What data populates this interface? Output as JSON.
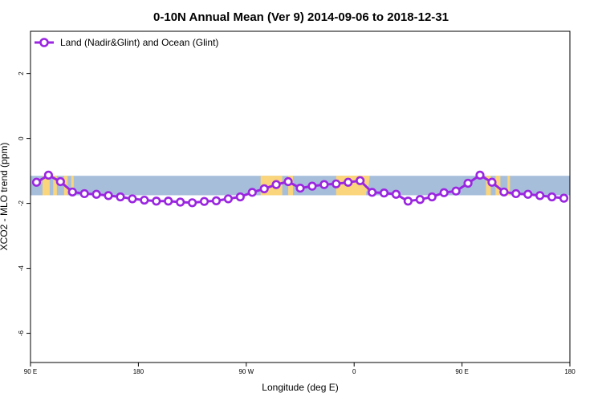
{
  "chart_data": {
    "type": "line",
    "title": "0-10N Annual Mean (Ver 9)   2014-09-06 to 2018-12-31",
    "xlabel": "Longitude (deg E)",
    "ylabel": "XCO2 - MLO trend (ppm)",
    "xlim": [
      90,
      540
    ],
    "ylim": [
      -6.9,
      3.3
    ],
    "x_ticks": [
      90,
      180,
      270,
      360,
      450,
      540
    ],
    "x_tick_labels": [
      "90 E",
      "180",
      "90 W",
      "0",
      "90 E",
      "180"
    ],
    "y_ticks": [
      -6,
      -4,
      -2,
      0,
      2
    ],
    "y_tick_labels": [
      "-6",
      "-4",
      "-2",
      "0",
      "2"
    ],
    "legend_position": "top-left",
    "grid": false,
    "background_map": {
      "description": "land/ocean band 0-10N",
      "ymin": -1.75,
      "ymax": -1.15,
      "ocean_color": "#a7bedb",
      "land_color": "#fbd57b"
    },
    "series": [
      {
        "name": "Land (Nadir&Glint) and Ocean (Glint)",
        "color": "#9a26e0",
        "x": [
          95,
          105,
          115,
          125,
          135,
          145,
          155,
          165,
          175,
          185,
          195,
          205,
          215,
          225,
          235,
          245,
          255,
          265,
          275,
          285,
          295,
          305,
          315,
          325,
          335,
          345,
          355,
          365,
          375,
          385,
          395,
          405,
          415,
          425,
          435,
          445,
          455,
          465,
          475,
          485,
          495,
          505,
          515,
          525,
          535
        ],
        "y": [
          -1.35,
          -1.13,
          -1.33,
          -1.65,
          -1.7,
          -1.72,
          -1.76,
          -1.8,
          -1.86,
          -1.9,
          -1.93,
          -1.93,
          -1.96,
          -1.98,
          -1.94,
          -1.92,
          -1.86,
          -1.8,
          -1.66,
          -1.55,
          -1.42,
          -1.33,
          -1.53,
          -1.47,
          -1.42,
          -1.4,
          -1.35,
          -1.3,
          -1.66,
          -1.68,
          -1.72,
          -1.93,
          -1.88,
          -1.8,
          -1.67,
          -1.62,
          -1.38,
          -1.13,
          -1.35,
          -1.65,
          -1.7,
          -1.72,
          -1.76,
          -1.8,
          -1.84
        ]
      }
    ]
  }
}
